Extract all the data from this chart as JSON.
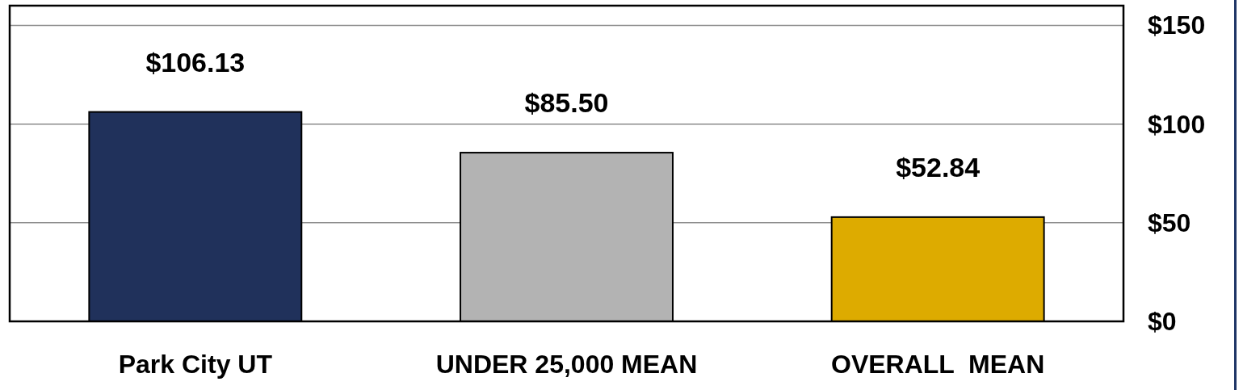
{
  "chart_data": {
    "type": "bar",
    "categories": [
      "Park City UT",
      "UNDER 25,000 MEAN",
      "OVERALL  MEAN"
    ],
    "values": [
      106.13,
      85.5,
      52.84
    ],
    "colors": [
      "#20315b",
      "#b3b3b3",
      "#ddab00"
    ],
    "value_labels": [
      "$106.13",
      "$85.50",
      "$52.84"
    ],
    "ylim": [
      0,
      160
    ],
    "yticks": [
      {
        "value": 0,
        "label": "$0"
      },
      {
        "value": 50,
        "label": "$50"
      },
      {
        "value": 100,
        "label": "$100"
      },
      {
        "value": 150,
        "label": "$150"
      }
    ],
    "grid": "y"
  }
}
